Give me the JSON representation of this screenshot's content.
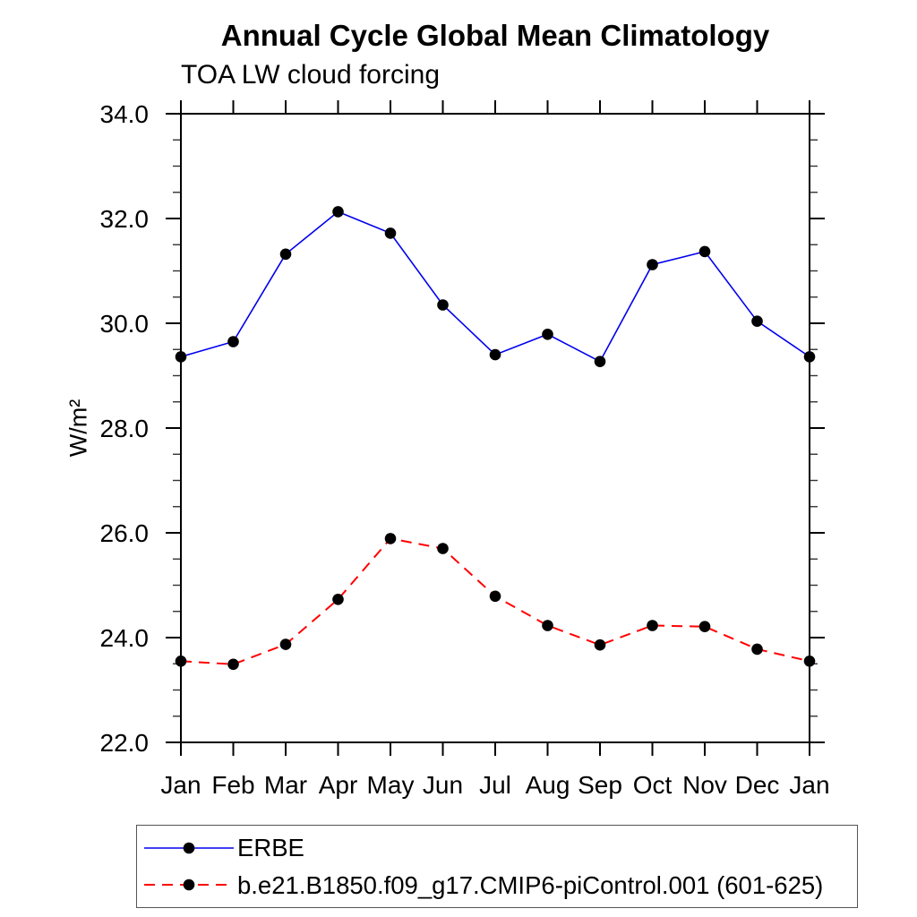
{
  "chart_data": {
    "type": "line",
    "title": "Annual Cycle Global Mean Climatology",
    "subtitle": "TOA LW cloud forcing",
    "ylabel": "W/m²",
    "xlabel": "",
    "categories": [
      "Jan",
      "Feb",
      "Mar",
      "Apr",
      "May",
      "Jun",
      "Jul",
      "Aug",
      "Sep",
      "Oct",
      "Nov",
      "Dec",
      "Jan"
    ],
    "ylim": [
      22.0,
      34.0
    ],
    "y_major_tick_values": [
      22,
      24,
      26,
      28,
      30,
      32,
      34
    ],
    "y_major_tick_labels": [
      "22.0",
      "24.0",
      "26.0",
      "28.0",
      "30.0",
      "32.0",
      "34.0"
    ],
    "y_minor_tick_step": 0.5,
    "grid": false,
    "legend_position": "boxed-below-plot",
    "axis_color": "#000000",
    "marker_color": "#000000",
    "series": [
      {
        "name": "ERBE",
        "line_color": "#0000ee",
        "line_style": "solid",
        "marker": "filled-circle",
        "values": [
          29.36,
          29.65,
          31.32,
          32.13,
          31.72,
          30.35,
          29.4,
          29.79,
          29.27,
          31.12,
          31.37,
          30.04,
          29.36
        ]
      },
      {
        "name": "b.e21.B1850.f09_g17.CMIP6-piControl.001 (601-625)",
        "line_color": "#ff0000",
        "line_style": "dashed",
        "marker": "filled-circle",
        "values": [
          23.55,
          23.49,
          23.87,
          24.73,
          25.89,
          25.7,
          24.79,
          24.23,
          23.86,
          24.23,
          24.21,
          23.78,
          23.55
        ]
      }
    ]
  }
}
